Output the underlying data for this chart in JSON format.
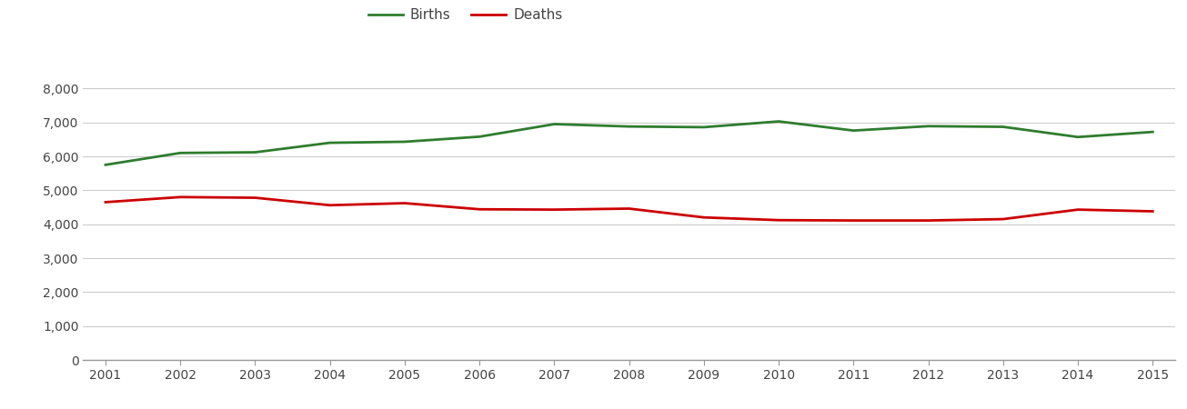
{
  "years": [
    2001,
    2002,
    2003,
    2004,
    2005,
    2006,
    2007,
    2008,
    2009,
    2010,
    2011,
    2012,
    2013,
    2014,
    2015
  ],
  "births": [
    5750,
    6100,
    6120,
    6400,
    6430,
    6580,
    6950,
    6880,
    6860,
    7030,
    6760,
    6890,
    6870,
    6570,
    6720
  ],
  "deaths": [
    4650,
    4800,
    4780,
    4560,
    4620,
    4440,
    4430,
    4460,
    4200,
    4120,
    4110,
    4110,
    4150,
    4430,
    4380
  ],
  "births_color": "#2e7d2e",
  "deaths_color": "#cc0000",
  "line_width": 2.0,
  "ylim": [
    0,
    8800
  ],
  "yticks": [
    0,
    1000,
    2000,
    3000,
    4000,
    5000,
    6000,
    7000,
    8000
  ],
  "background_color": "#ffffff",
  "grid_color": "#cccccc",
  "legend_labels": [
    "Births",
    "Deaths"
  ],
  "legend_fontsize": 11
}
